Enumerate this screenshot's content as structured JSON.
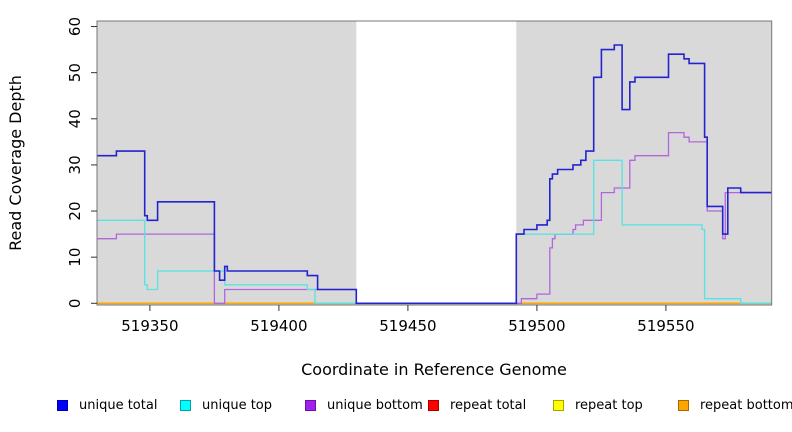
{
  "figure": {
    "xlabel": "Coordinate in Reference Genome",
    "ylabel": "Read Coverage Depth"
  },
  "legend": [
    {
      "label": "unique total",
      "color": "#0000FF"
    },
    {
      "label": "unique top",
      "color": "#00FFFF"
    },
    {
      "label": "unique bottom",
      "color": "#A020F0"
    },
    {
      "label": "repeat total",
      "color": "#FF0000"
    },
    {
      "label": "repeat top",
      "color": "#FFFF00"
    },
    {
      "label": "repeat bottom",
      "color": "#FFA500"
    }
  ],
  "chart_data": {
    "type": "line",
    "subtype": "step-after-coverage-plot",
    "title": "",
    "xlabel": "Coordinate in Reference Genome",
    "ylabel": "Read Coverage Depth",
    "xlim": [
      519329.5,
      519591
    ],
    "ylim": [
      0,
      61
    ],
    "x_ticks": [
      519350,
      519400,
      519450,
      519500,
      519550
    ],
    "y_ticks": [
      0,
      10,
      20,
      30,
      40,
      50,
      60
    ],
    "grid": "off",
    "legend_position": "bottom",
    "plot_background": "#d9d9d9",
    "gap_region": {
      "x_start": 519430,
      "x_end": 519492,
      "fill": "#ffffff",
      "note": "white uncovered interval, all unique series drop to 0"
    },
    "series": [
      {
        "name": "unique total",
        "color": "#0000FF",
        "line_color": "#2323cf",
        "line_width": 1.6,
        "points": [
          [
            519329.5,
            32
          ],
          [
            519337,
            33
          ],
          [
            519348,
            19
          ],
          [
            519349,
            18
          ],
          [
            519353,
            22
          ],
          [
            519375,
            7
          ],
          [
            519377,
            5
          ],
          [
            519379,
            8
          ],
          [
            519380,
            7
          ],
          [
            519411,
            6
          ],
          [
            519415,
            3
          ],
          [
            519430,
            0
          ],
          [
            519492,
            15
          ],
          [
            519495,
            16
          ],
          [
            519500,
            17
          ],
          [
            519504,
            18
          ],
          [
            519505,
            27
          ],
          [
            519506,
            28
          ],
          [
            519508,
            29
          ],
          [
            519514,
            30
          ],
          [
            519517,
            31
          ],
          [
            519519,
            33
          ],
          [
            519522,
            49
          ],
          [
            519525,
            55
          ],
          [
            519530,
            56
          ],
          [
            519533,
            42
          ],
          [
            519536,
            48
          ],
          [
            519538,
            49
          ],
          [
            519551,
            54
          ],
          [
            519557,
            53
          ],
          [
            519559,
            52
          ],
          [
            519565,
            36
          ],
          [
            519566,
            21
          ],
          [
            519572,
            15
          ],
          [
            519574,
            25
          ],
          [
            519579,
            24
          ]
        ]
      },
      {
        "name": "unique top",
        "color": "#00FFFF",
        "line_color": "#55e3e3",
        "line_width": 1.3,
        "points": [
          [
            519329.5,
            18
          ],
          [
            519348,
            4
          ],
          [
            519349,
            3
          ],
          [
            519353,
            7
          ],
          [
            519379,
            4
          ],
          [
            519411,
            3
          ],
          [
            519414,
            0
          ],
          [
            519492,
            15
          ],
          [
            519522,
            31
          ],
          [
            519533,
            17
          ],
          [
            519564,
            16
          ],
          [
            519565,
            1
          ],
          [
            519579,
            0
          ]
        ]
      },
      {
        "name": "unique bottom",
        "color": "#A020F0",
        "line_color": "#b266dc",
        "line_width": 1.3,
        "points": [
          [
            519329.5,
            14
          ],
          [
            519337,
            15
          ],
          [
            519375,
            0
          ],
          [
            519379,
            3
          ],
          [
            519430,
            0
          ],
          [
            519494,
            1
          ],
          [
            519500,
            2
          ],
          [
            519505,
            12
          ],
          [
            519506,
            14
          ],
          [
            519507,
            15
          ],
          [
            519514,
            16
          ],
          [
            519515,
            17
          ],
          [
            519518,
            18
          ],
          [
            519525,
            24
          ],
          [
            519530,
            25
          ],
          [
            519536,
            31
          ],
          [
            519538,
            32
          ],
          [
            519551,
            37
          ],
          [
            519557,
            36
          ],
          [
            519559,
            35
          ],
          [
            519566,
            20
          ],
          [
            519572,
            14
          ],
          [
            519573,
            24
          ]
        ]
      },
      {
        "name": "repeat total",
        "color": "#FF0000",
        "line_color": "#e03030",
        "line_width": 1.2,
        "points": [
          [
            519329.5,
            0
          ]
        ]
      },
      {
        "name": "repeat top",
        "color": "#FFFF00",
        "line_color": "#f5e400",
        "line_width": 1.2,
        "points": [
          [
            519329.5,
            0
          ]
        ]
      },
      {
        "name": "repeat bottom",
        "color": "#FFA500",
        "line_color": "#ffa500",
        "line_width": 1.6,
        "points": [
          [
            519329.5,
            0
          ]
        ]
      }
    ]
  }
}
